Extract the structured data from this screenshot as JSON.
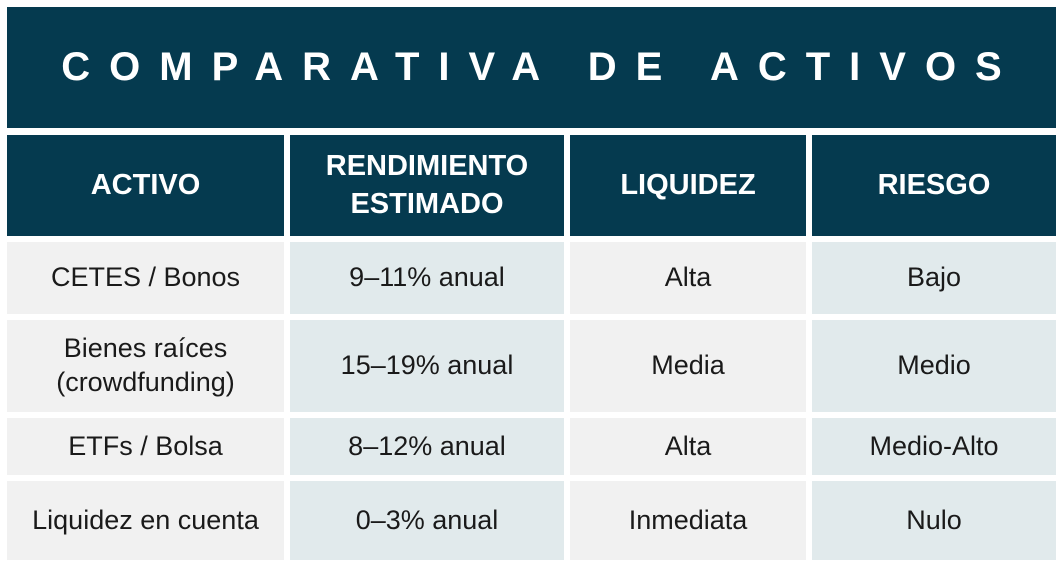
{
  "title": "COMPARATIVA DE ACTIVOS",
  "table": {
    "headers": [
      "ACTIVO",
      "RENDIMIENTO ESTIMADO",
      "LIQUIDEZ",
      "RIESGO"
    ],
    "rows": [
      [
        "CETES / Bonos",
        "9–11% anual",
        "Alta",
        "Bajo"
      ],
      [
        "Bienes raíces (crowdfunding)",
        "15–19% anual",
        "Media",
        "Medio"
      ],
      [
        "ETFs / Bolsa",
        "8–12% anual",
        "Alta",
        "Medio-Alto"
      ],
      [
        "Liquidez en cuenta",
        "0–3% anual",
        "Inmediata",
        "Nulo"
      ]
    ]
  },
  "colors": {
    "header_bg": "#053a4f",
    "header_text": "#ffffff",
    "cell_light": "#f1f1f1",
    "cell_blue": "#e1eaec",
    "body_text": "#1a1a1a"
  }
}
